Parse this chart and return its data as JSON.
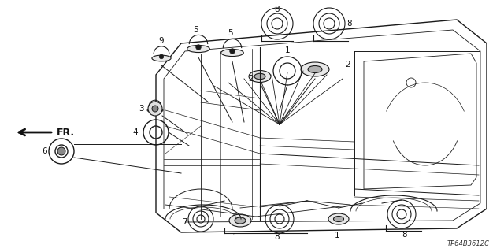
{
  "bg_color": "#ffffff",
  "part_code": "TP64B3612C",
  "car_color": "#1a1a1a",
  "line_color": "#1a1a1a",
  "figsize": [
    6.4,
    3.2
  ],
  "dpi": 100
}
